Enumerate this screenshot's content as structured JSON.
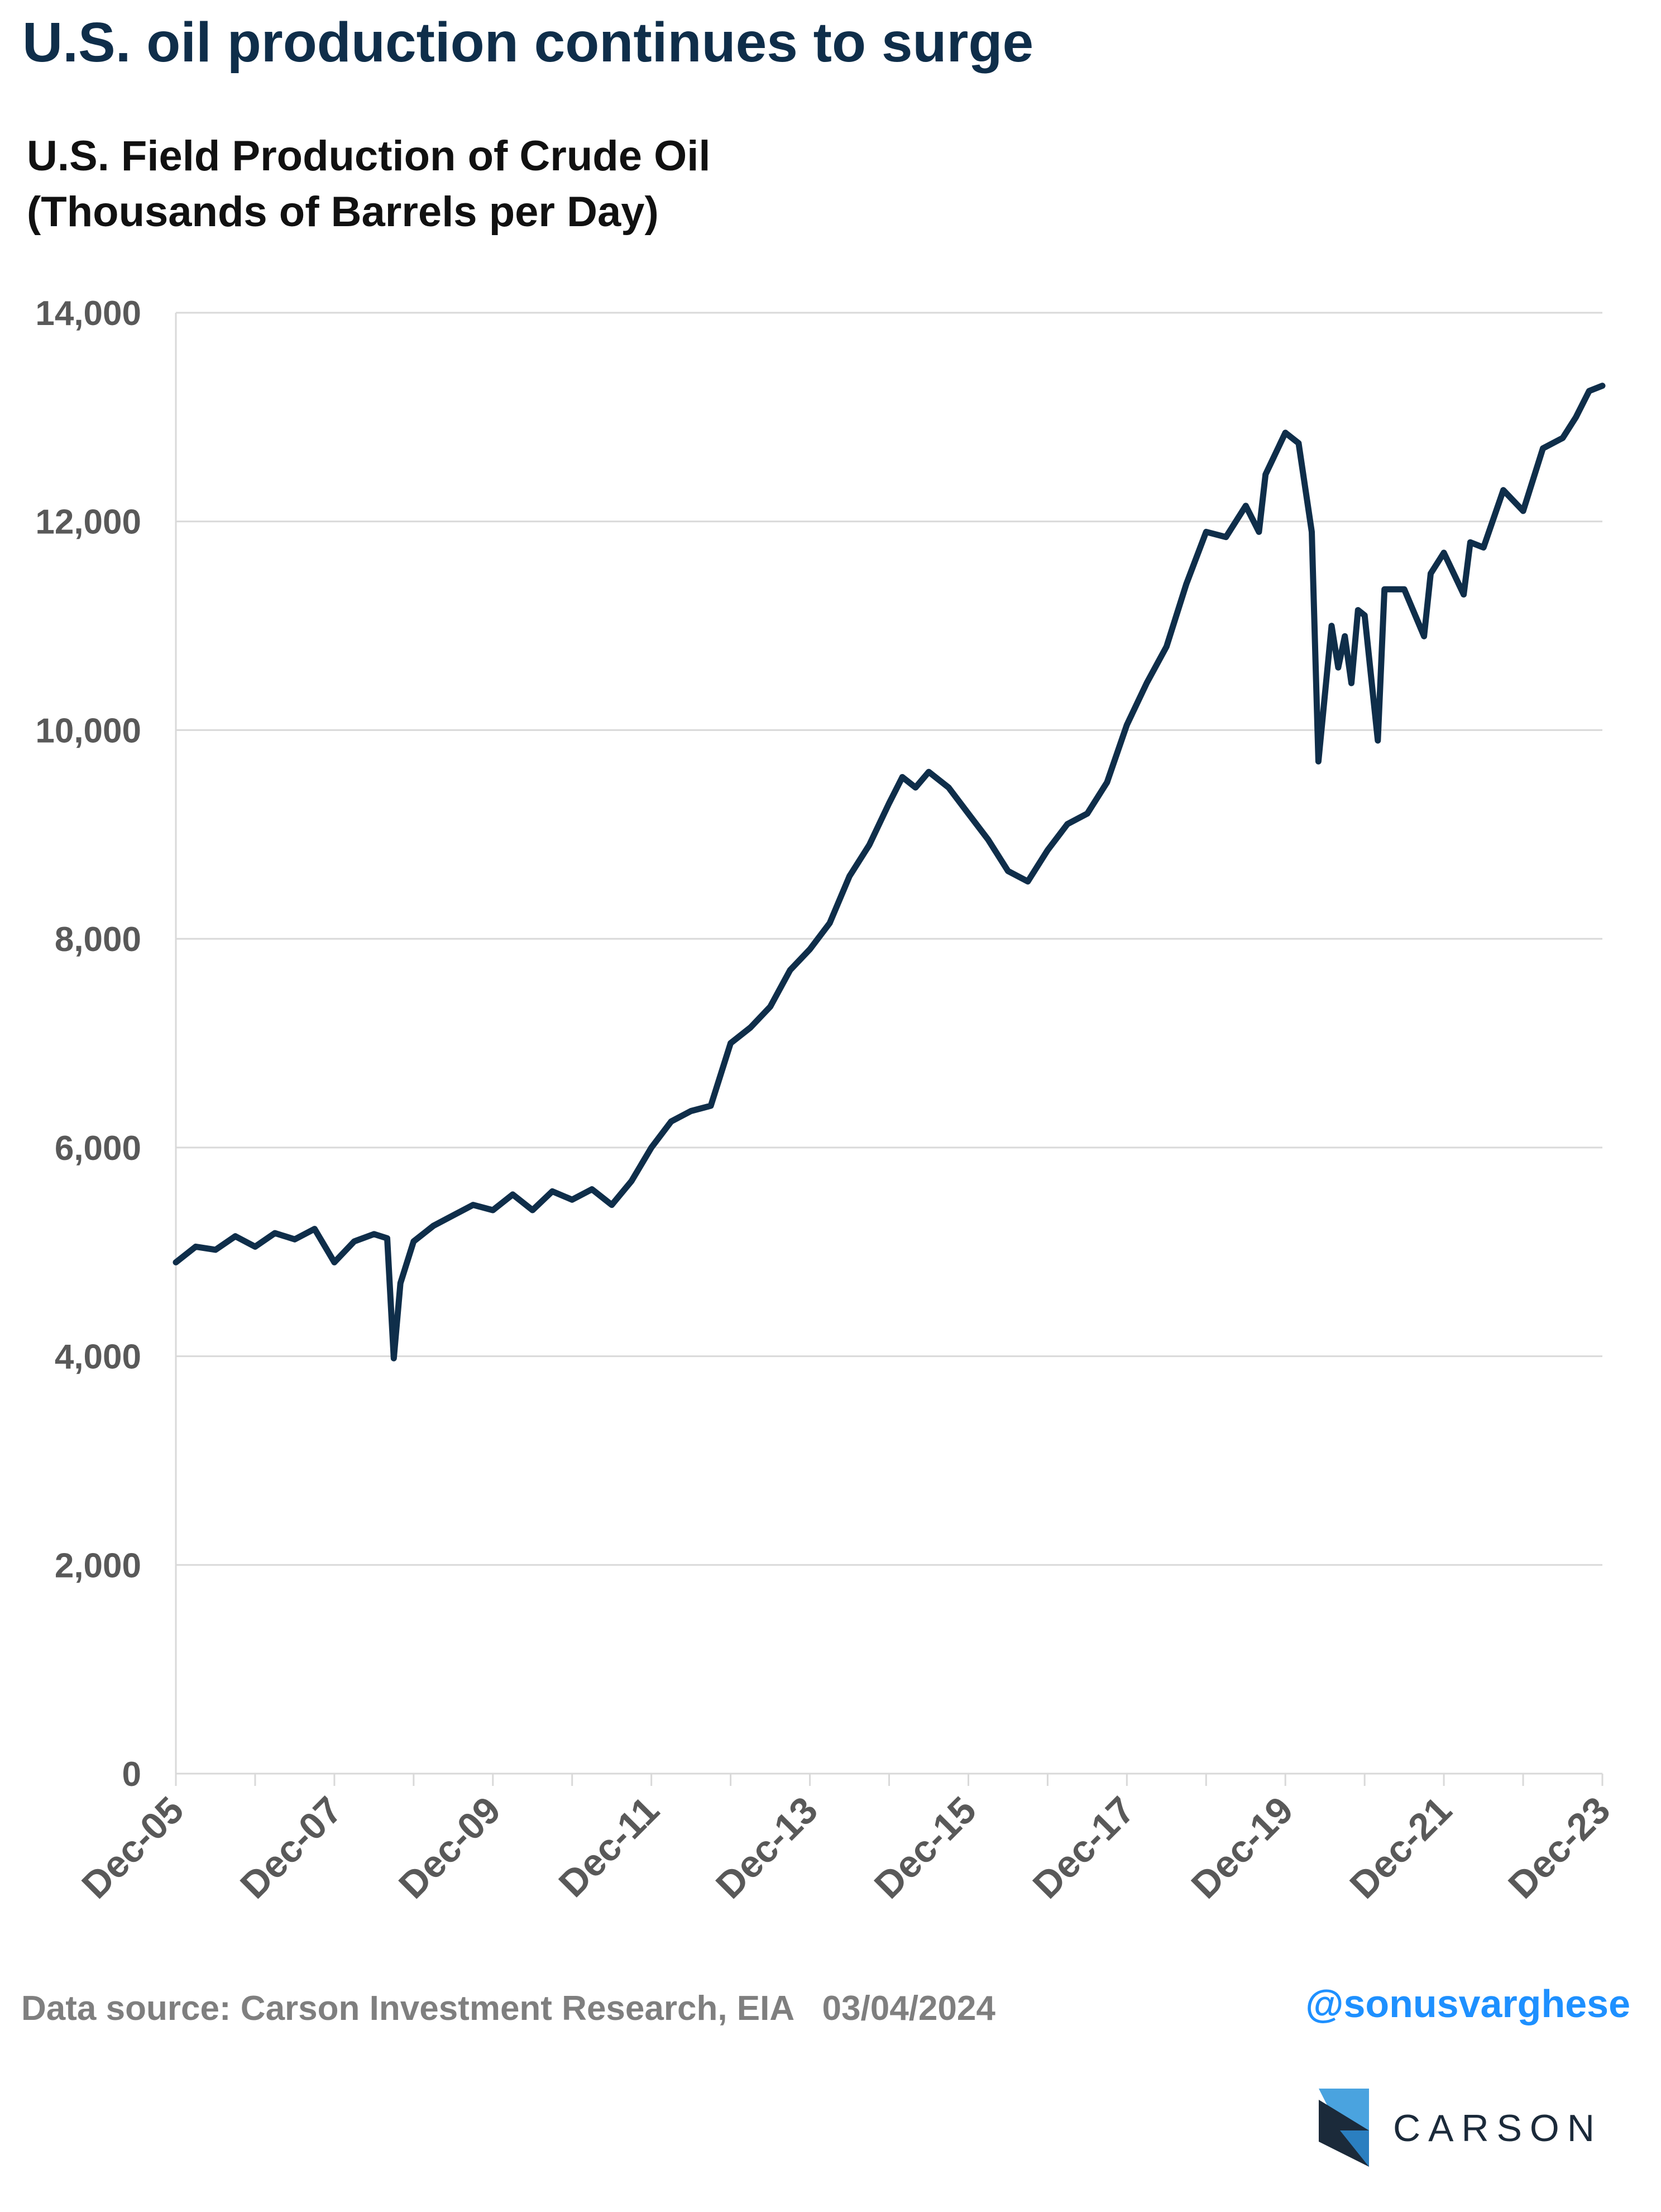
{
  "title": "U.S. oil production continues to surge",
  "subtitle_line1": "U.S. Field Production of Crude Oil",
  "subtitle_line2": "(Thousands of Barrels per Day)",
  "source": "Data source: Carson Investment Research, EIA   03/04/2024",
  "handle": "@sonusvarghese",
  "brand": "CARSON",
  "colors": {
    "line": "#0f2e4a",
    "title": "#0f2e4a",
    "grid": "#d9d9d9",
    "handle": "#1e90ff",
    "logo_light": "#4aa3df",
    "logo_dark": "#1b2a3a"
  },
  "chart_data": {
    "type": "line",
    "title": "U.S. Field Production of Crude Oil (Thousands of Barrels per Day)",
    "xlabel": "",
    "ylabel": "",
    "ylim": [
      0,
      14000
    ],
    "yticks": [
      "0",
      "2,000",
      "4,000",
      "6,000",
      "8,000",
      "10,000",
      "12,000",
      "14,000"
    ],
    "ytick_values": [
      0,
      2000,
      4000,
      6000,
      8000,
      10000,
      12000,
      14000
    ],
    "xlim": [
      "Dec-05",
      "Dec-23"
    ],
    "xticks": [
      "Dec-05",
      "Dec-07",
      "Dec-09",
      "Dec-11",
      "Dec-13",
      "Dec-15",
      "Dec-17",
      "Dec-19",
      "Dec-21",
      "Dec-23"
    ],
    "grid": true,
    "legend": "none",
    "series": [
      {
        "points": [
          [
            "Dec-05",
            4900
          ],
          [
            "Mar-06",
            5050
          ],
          [
            "Jun-06",
            5020
          ],
          [
            "Sep-06",
            5150
          ],
          [
            "Dec-06",
            5050
          ],
          [
            "Mar-07",
            5180
          ],
          [
            "Jun-07",
            5120
          ],
          [
            "Sep-07",
            5220
          ],
          [
            "Dec-07",
            4900
          ],
          [
            "Mar-08",
            5100
          ],
          [
            "Jun-08",
            5170
          ],
          [
            "Aug-08",
            5130
          ],
          [
            "Sep-08",
            3980
          ],
          [
            "Oct-08",
            4700
          ],
          [
            "Dec-08",
            5100
          ],
          [
            "Mar-09",
            5250
          ],
          [
            "Jun-09",
            5350
          ],
          [
            "Sep-09",
            5450
          ],
          [
            "Dec-09",
            5400
          ],
          [
            "Mar-10",
            5550
          ],
          [
            "Jun-10",
            5400
          ],
          [
            "Sep-10",
            5580
          ],
          [
            "Dec-10",
            5500
          ],
          [
            "Mar-11",
            5600
          ],
          [
            "Jun-11",
            5450
          ],
          [
            "Sep-11",
            5680
          ],
          [
            "Dec-11",
            6000
          ],
          [
            "Mar-12",
            6250
          ],
          [
            "Jun-12",
            6350
          ],
          [
            "Sep-12",
            6400
          ],
          [
            "Dec-12",
            7000
          ],
          [
            "Mar-13",
            7150
          ],
          [
            "Jun-13",
            7350
          ],
          [
            "Sep-13",
            7700
          ],
          [
            "Dec-13",
            7900
          ],
          [
            "Mar-14",
            8150
          ],
          [
            "Jun-14",
            8600
          ],
          [
            "Sep-14",
            8900
          ],
          [
            "Dec-14",
            9300
          ],
          [
            "Feb-15",
            9550
          ],
          [
            "Apr-15",
            9450
          ],
          [
            "Jun-15",
            9600
          ],
          [
            "Sep-15",
            9450
          ],
          [
            "Dec-15",
            9200
          ],
          [
            "Mar-16",
            8950
          ],
          [
            "Jun-16",
            8650
          ],
          [
            "Sep-16",
            8550
          ],
          [
            "Dec-16",
            8850
          ],
          [
            "Mar-17",
            9100
          ],
          [
            "Jun-17",
            9200
          ],
          [
            "Sep-17",
            9500
          ],
          [
            "Dec-17",
            10050
          ],
          [
            "Mar-18",
            10450
          ],
          [
            "Jun-18",
            10800
          ],
          [
            "Sep-18",
            11400
          ],
          [
            "Dec-18",
            11900
          ],
          [
            "Mar-19",
            11850
          ],
          [
            "Jun-19",
            12150
          ],
          [
            "Aug-19",
            11900
          ],
          [
            "Sep-19",
            12450
          ],
          [
            "Dec-19",
            12850
          ],
          [
            "Feb-20",
            12750
          ],
          [
            "Apr-20",
            11900
          ],
          [
            "May-20",
            9700
          ],
          [
            "Jul-20",
            11000
          ],
          [
            "Aug-20",
            10600
          ],
          [
            "Sep-20",
            10900
          ],
          [
            "Oct-20",
            10450
          ],
          [
            "Nov-20",
            11150
          ],
          [
            "Dec-20",
            11100
          ],
          [
            "Feb-21",
            9900
          ],
          [
            "Mar-21",
            11350
          ],
          [
            "Jun-21",
            11350
          ],
          [
            "Sep-21",
            10900
          ],
          [
            "Oct-21",
            11500
          ],
          [
            "Dec-21",
            11700
          ],
          [
            "Mar-22",
            11300
          ],
          [
            "Apr-22",
            11800
          ],
          [
            "Jun-22",
            11750
          ],
          [
            "Sep-22",
            12300
          ],
          [
            "Dec-22",
            12100
          ],
          [
            "Mar-23",
            12700
          ],
          [
            "Jun-23",
            12800
          ],
          [
            "Aug-23",
            13000
          ],
          [
            "Oct-23",
            13250
          ],
          [
            "Dec-23",
            13300
          ]
        ]
      }
    ]
  }
}
